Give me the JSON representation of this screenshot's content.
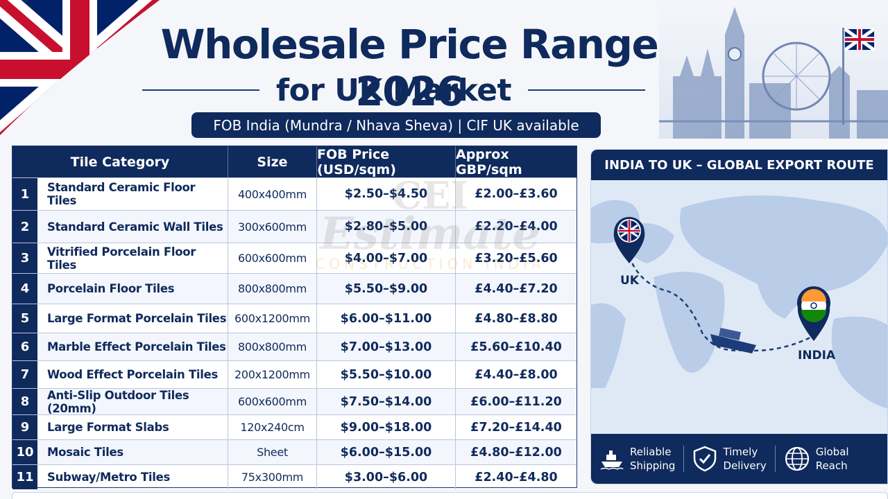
{
  "title": "Wholesale Price Range 2026",
  "subtitle": "for UK Market",
  "fob_note": "FOB India (Mundra / Nhava Sheva) | CIF UK available",
  "table": {
    "headers": {
      "category": "Tile Category",
      "size": "Size",
      "fob": "FOB Price (USD/sqm)",
      "gbp": "Approx GBP/sqm"
    },
    "rows": [
      {
        "num": "1",
        "name": "Standard Ceramic Floor Tiles",
        "size": "400x400mm",
        "fob": "$2.50–$4.50",
        "gbp": "£2.00–£3.60"
      },
      {
        "num": "2",
        "name": "Standard Ceramic Wall Tiles",
        "size": "300x600mm",
        "fob": "$2.80–$5.00",
        "gbp": "£2.20–£4.00"
      },
      {
        "num": "3",
        "name": "Vitrified Porcelain Floor Tiles",
        "size": "600x600mm",
        "fob": "$4.00–$7.00",
        "gbp": "£3.20–£5.60"
      },
      {
        "num": "4",
        "name": "Porcelain Floor Tiles",
        "size": "800x800mm",
        "fob": "$5.50–$9.00",
        "gbp": "£4.40–£7.20"
      },
      {
        "num": "5",
        "name": "Large Format Porcelain Tiles",
        "size": "600x1200mm",
        "fob": "$6.00–$11.00",
        "gbp": "£4.80–£8.80"
      },
      {
        "num": "6",
        "name": "Marble Effect Porcelain Tiles",
        "size": "800x800mm",
        "fob": "$7.00–$13.00",
        "gbp": "£5.60–£10.40"
      },
      {
        "num": "7",
        "name": "Wood Effect Porcelain Tiles",
        "size": "200x1200mm",
        "fob": "$5.50–$10.00",
        "gbp": "£4.40–£8.00"
      },
      {
        "num": "8",
        "name": "Anti-Slip Outdoor Tiles (20mm)",
        "size": "600x600mm",
        "fob": "$7.50–$14.00",
        "gbp": "£6.00–£11.20"
      },
      {
        "num": "9",
        "name": "Large Format Slabs",
        "size": "120x240cm",
        "fob": "$9.00–$18.00",
        "gbp": "£7.20–£14.40"
      },
      {
        "num": "10",
        "name": "Mosaic Tiles",
        "size": "Sheet",
        "fob": "$6.00–$15.00",
        "gbp": "£4.80–£12.00"
      },
      {
        "num": "11",
        "name": "Subway/Metro Tiles",
        "size": "75x300mm",
        "fob": "$3.00–$6.00",
        "gbp": "£2.40–£4.80"
      }
    ]
  },
  "watermark": {
    "line1": "CEI",
    "line2": "Estimate",
    "line3": "CONSTRUCTION INDIA"
  },
  "route": {
    "heading": "INDIA TO UK – GLOBAL EXPORT ROUTE",
    "origin_label": "UK",
    "destination_label": "INDIA",
    "features": [
      {
        "icon": "ship-icon",
        "line1": "Reliable",
        "line2": "Shipping"
      },
      {
        "icon": "shield-check-icon",
        "line1": "Timely",
        "line2": "Delivery"
      },
      {
        "icon": "globe-icon",
        "line1": "Global",
        "line2": "Reach"
      }
    ]
  },
  "colors": {
    "navy": "#0f2a5c",
    "flag_red": "#c8102e",
    "flag_blue": "#012169",
    "india_saffron": "#ff9933",
    "india_green": "#138808"
  }
}
